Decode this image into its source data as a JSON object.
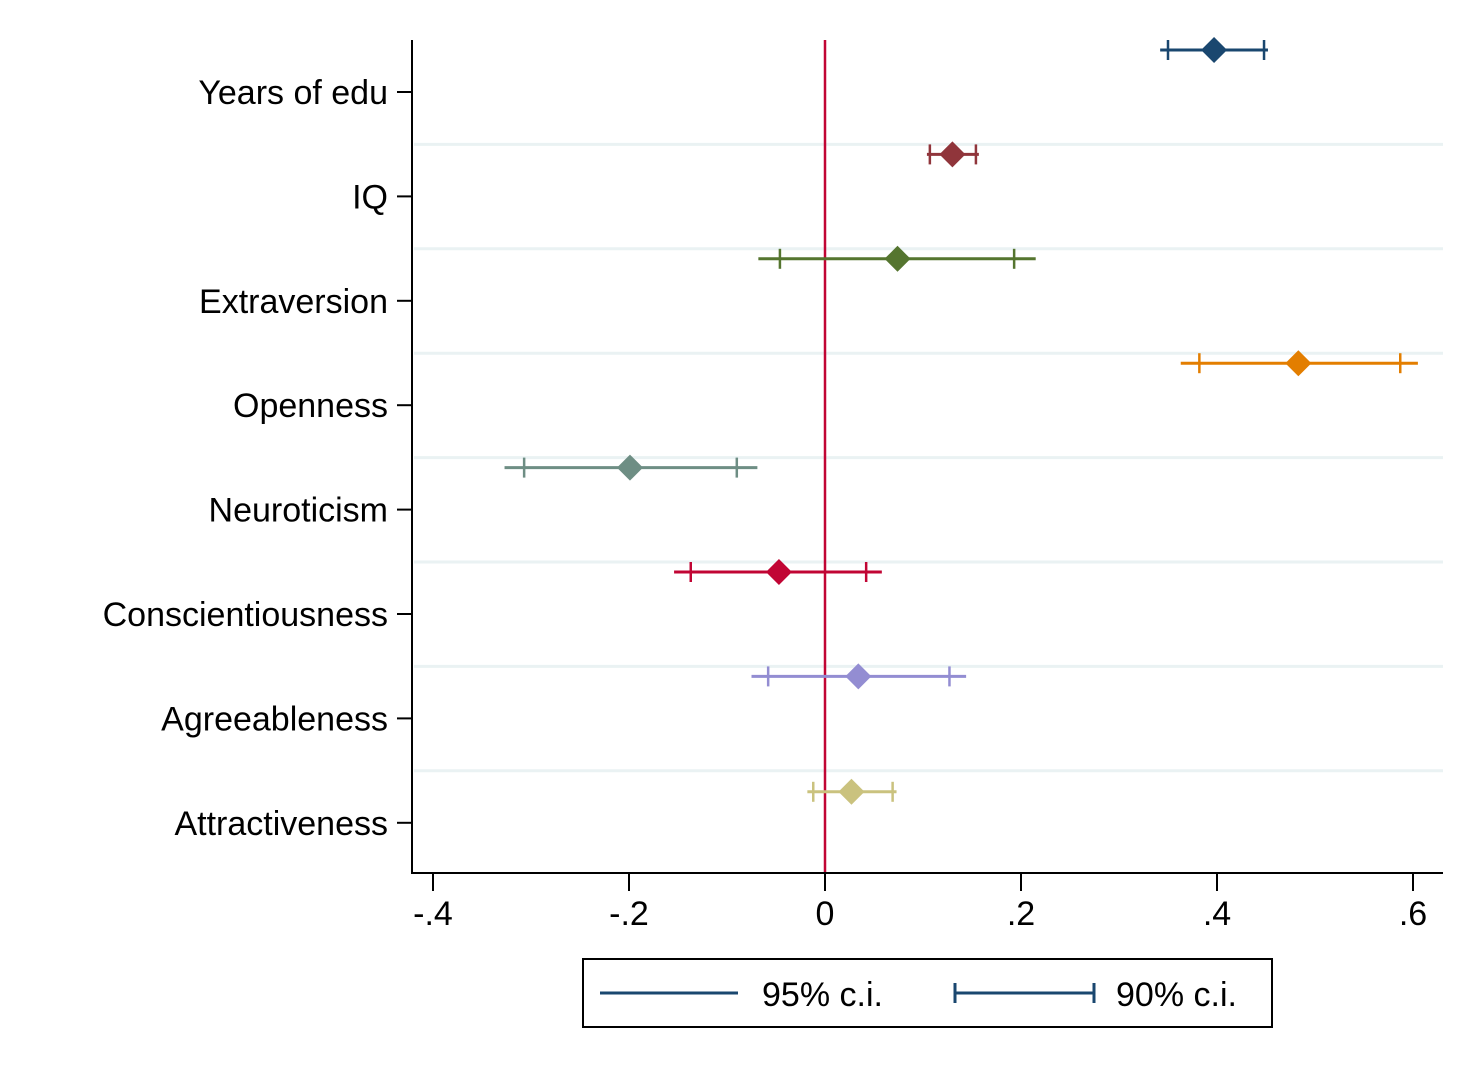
{
  "chart_data": {
    "type": "coefficient-plot",
    "title": "",
    "xlabel": "",
    "ylabel": "",
    "xlim": [
      -0.42,
      0.63
    ],
    "x_ticks": [
      {
        "value": -0.4,
        "label": "-.4"
      },
      {
        "value": -0.2,
        "label": "-.2"
      },
      {
        "value": 0,
        "label": "0"
      },
      {
        "value": 0.2,
        "label": ".2"
      },
      {
        "value": 0.4,
        "label": ".4"
      },
      {
        "value": 0.6,
        "label": ".6"
      }
    ],
    "reference_line": {
      "x": 0,
      "color": "#c10534"
    },
    "categories": [
      {
        "name": "Years of edu",
        "estimate": 0.397,
        "ci95": [
          0.342,
          0.452
        ],
        "ci90": [
          0.35,
          0.448
        ],
        "color": "#1a476f"
      },
      {
        "name": "IQ",
        "estimate": 0.13,
        "ci95": [
          0.104,
          0.157
        ],
        "ci90": [
          0.107,
          0.154
        ],
        "color": "#90353b"
      },
      {
        "name": "Extraversion",
        "estimate": 0.074,
        "ci95": [
          -0.068,
          0.215
        ],
        "ci90": [
          -0.046,
          0.193
        ],
        "color": "#55752f"
      },
      {
        "name": "Openness",
        "estimate": 0.483,
        "ci95": [
          0.363,
          0.605
        ],
        "ci90": [
          0.382,
          0.587
        ],
        "color": "#e37e00"
      },
      {
        "name": "Neuroticism",
        "estimate": -0.199,
        "ci95": [
          -0.327,
          -0.069
        ],
        "ci90": [
          -0.307,
          -0.09
        ],
        "color": "#6e8e84"
      },
      {
        "name": "Conscientiousness",
        "estimate": -0.047,
        "ci95": [
          -0.154,
          0.058
        ],
        "ci90": [
          -0.137,
          0.042
        ],
        "color": "#c10534"
      },
      {
        "name": "Agreeableness",
        "estimate": 0.034,
        "ci95": [
          -0.075,
          0.144
        ],
        "ci90": [
          -0.058,
          0.127
        ],
        "color": "#938dd2"
      },
      {
        "name": "Attractiveness",
        "estimate": 0.027,
        "ci95": [
          -0.018,
          0.073
        ],
        "ci90": [
          -0.012,
          0.069
        ],
        "color": "#cac27e"
      }
    ],
    "legend": {
      "position": "bottom-center",
      "items": [
        {
          "label": "95% c.i.",
          "style": "line",
          "color": "#1a476f"
        },
        {
          "label": "90% c.i.",
          "style": "capped-line",
          "color": "#1a476f"
        }
      ]
    },
    "colors": {
      "gridline": "#eaf2f3",
      "axis": "#000000"
    }
  }
}
